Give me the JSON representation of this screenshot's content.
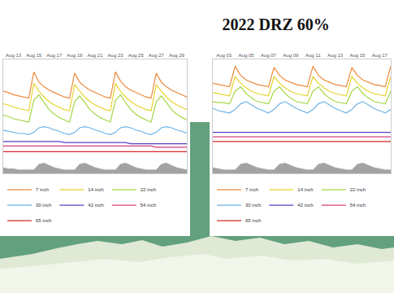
{
  "chart_data": [
    {
      "type": "line",
      "categories": [
        null,
        null,
        "Aug 13",
        null,
        null,
        null,
        "Aug 15",
        null,
        null,
        null,
        "Aug 17",
        null,
        null,
        null,
        "Aug 19",
        null,
        null,
        null,
        "Aug 21",
        null,
        null,
        null,
        "Aug 23",
        null,
        null,
        null,
        "Aug 25",
        null,
        null,
        null,
        "Aug 27",
        null,
        null,
        null,
        "Aug 29",
        null,
        null
      ],
      "series": [
        {
          "name": "7 inch",
          "color": "#f0883a",
          "values": [
            72,
            71,
            69,
            68,
            67,
            66,
            89,
            80,
            76,
            73,
            71,
            69,
            67,
            66,
            88,
            80,
            76,
            73,
            71,
            69,
            67,
            66,
            89,
            81,
            76,
            73,
            71,
            69,
            67,
            66,
            88,
            80,
            76,
            73,
            71,
            69,
            67
          ]
        },
        {
          "name": "14 inch",
          "color": "#e6d32e",
          "values": [
            61,
            60,
            58,
            57,
            56,
            55,
            79,
            72,
            67,
            63,
            60,
            58,
            56,
            55,
            78,
            72,
            67,
            63,
            60,
            58,
            56,
            55,
            79,
            72,
            67,
            63,
            60,
            58,
            56,
            55,
            78,
            72,
            67,
            63,
            60,
            58,
            56
          ]
        },
        {
          "name": "22 inch",
          "color": "#a6d648",
          "values": [
            51,
            50,
            48,
            47,
            46,
            45,
            64,
            69,
            62,
            56,
            52,
            49,
            47,
            45,
            63,
            68,
            62,
            56,
            52,
            49,
            47,
            45,
            64,
            69,
            62,
            56,
            52,
            49,
            47,
            45,
            63,
            68,
            62,
            56,
            52,
            49,
            47
          ]
        },
        {
          "name": "30 inch",
          "color": "#6cb2e6",
          "values": [
            38,
            37,
            36,
            35,
            35,
            34,
            36,
            40,
            41,
            40,
            38,
            37,
            35,
            34,
            36,
            40,
            41,
            40,
            38,
            37,
            35,
            34,
            36,
            40,
            41,
            40,
            38,
            37,
            35,
            34,
            36,
            40,
            41,
            40,
            38,
            37,
            35
          ]
        },
        {
          "name": "42 inch",
          "color": "#5a3ec6",
          "values": [
            28,
            28,
            28,
            28,
            28,
            28,
            28,
            28,
            28,
            28,
            28,
            28,
            27,
            27,
            27,
            27,
            27,
            27,
            27,
            27,
            27,
            27,
            27,
            27,
            27,
            26,
            26,
            26,
            26,
            26,
            26,
            26,
            26,
            26,
            26,
            26,
            26
          ]
        },
        {
          "name": "54 inch",
          "color": "#d0407c",
          "values": [
            24,
            24,
            24,
            24,
            24,
            24,
            24,
            24,
            24,
            24,
            24,
            24,
            24,
            24,
            24,
            24,
            24,
            24,
            24,
            24,
            24,
            24,
            24,
            24,
            24,
            24,
            24,
            24,
            24,
            24,
            23,
            23,
            23,
            23,
            23,
            23,
            23
          ]
        },
        {
          "name": "65 inch",
          "color": "#d42a2a",
          "values": [
            19,
            19,
            19,
            19,
            19,
            19,
            19,
            19,
            19,
            19,
            19,
            19,
            19,
            19,
            19,
            19,
            19,
            19,
            19,
            19,
            19,
            19,
            19,
            19,
            19,
            19,
            19,
            19,
            19,
            19,
            19,
            19,
            19,
            19,
            19,
            19,
            19
          ]
        },
        {
          "type": "area",
          "color": "#a3a3a3",
          "values": [
            5,
            4,
            4,
            3,
            3,
            3,
            3,
            8,
            9,
            7,
            5,
            4,
            3,
            3,
            3,
            8,
            9,
            7,
            5,
            4,
            3,
            3,
            3,
            8,
            9,
            7,
            5,
            4,
            3,
            3,
            3,
            8,
            9,
            7,
            5,
            4,
            3
          ]
        }
      ],
      "ylim": [
        0,
        100
      ],
      "tick_labels": "x",
      "grid": false,
      "legend": "bottom"
    },
    {
      "type": "line",
      "title": "2022 DRZ 60%",
      "categories": [
        null,
        null,
        "Aug 03",
        null,
        null,
        null,
        "Aug 05",
        null,
        null,
        null,
        "Aug 07",
        null,
        null,
        null,
        "Aug 09",
        null,
        null,
        null,
        "Aug 11",
        null,
        null,
        null,
        "Aug 13",
        null,
        null,
        null,
        "Aug 15",
        null,
        null,
        null,
        "Aug 17",
        null,
        null
      ],
      "series": [
        {
          "name": "7 inch",
          "color": "#f0883a",
          "values": [
            79,
            78,
            77,
            76,
            94,
            86,
            82,
            80,
            78,
            77,
            76,
            93,
            86,
            82,
            80,
            78,
            77,
            76,
            94,
            86,
            82,
            80,
            78,
            77,
            76,
            93,
            86,
            82,
            80,
            78,
            77,
            76,
            94
          ]
        },
        {
          "name": "14 inch",
          "color": "#e6d32e",
          "values": [
            71,
            70,
            69,
            68,
            85,
            79,
            75,
            72,
            70,
            69,
            68,
            85,
            79,
            75,
            72,
            70,
            69,
            68,
            85,
            79,
            75,
            72,
            70,
            69,
            68,
            85,
            79,
            75,
            72,
            70,
            69,
            68,
            85
          ]
        },
        {
          "name": "22 inch",
          "color": "#a6d648",
          "values": [
            63,
            62,
            62,
            61,
            72,
            76,
            70,
            66,
            63,
            62,
            61,
            72,
            76,
            70,
            66,
            63,
            62,
            61,
            72,
            76,
            70,
            66,
            63,
            62,
            61,
            72,
            76,
            70,
            66,
            63,
            62,
            61,
            72
          ]
        },
        {
          "name": "30 inch",
          "color": "#6cb2e6",
          "values": [
            57,
            55,
            54,
            53,
            56,
            61,
            63,
            60,
            57,
            55,
            53,
            56,
            61,
            63,
            60,
            57,
            55,
            53,
            56,
            61,
            63,
            60,
            57,
            55,
            53,
            56,
            61,
            63,
            60,
            57,
            55,
            53,
            56
          ]
        },
        {
          "name": "42 inch",
          "color": "#5a3ec6",
          "values": [
            36,
            36,
            36,
            36,
            36,
            36,
            36,
            36,
            36,
            36,
            36,
            36,
            36,
            36,
            36,
            36,
            36,
            36,
            36,
            36,
            36,
            36,
            36,
            36,
            36,
            36,
            36,
            36,
            36,
            36,
            36,
            36,
            36
          ]
        },
        {
          "name": "54 inch",
          "color": "#d0407c",
          "values": [
            32,
            32,
            32,
            32,
            32,
            32,
            32,
            32,
            32,
            32,
            32,
            32,
            32,
            32,
            32,
            32,
            32,
            32,
            32,
            32,
            32,
            32,
            32,
            32,
            32,
            32,
            32,
            32,
            32,
            32,
            32,
            32,
            32
          ]
        },
        {
          "name": "65 inch",
          "color": "#d42a2a",
          "values": [
            28,
            28,
            28,
            28,
            28,
            28,
            28,
            28,
            28,
            28,
            28,
            28,
            28,
            28,
            28,
            28,
            28,
            28,
            28,
            28,
            28,
            28,
            28,
            28,
            28,
            28,
            28,
            28,
            28,
            28,
            28,
            28,
            28
          ]
        },
        {
          "type": "area",
          "color": "#a3a3a3",
          "values": [
            5,
            4,
            3,
            3,
            3,
            8,
            9,
            7,
            5,
            4,
            3,
            3,
            8,
            9,
            7,
            5,
            4,
            3,
            3,
            8,
            9,
            7,
            5,
            4,
            3,
            3,
            8,
            9,
            7,
            5,
            4,
            3,
            3
          ]
        }
      ],
      "ylim": [
        0,
        100
      ],
      "tick_labels": "x",
      "grid": false,
      "legend": "bottom"
    }
  ]
}
